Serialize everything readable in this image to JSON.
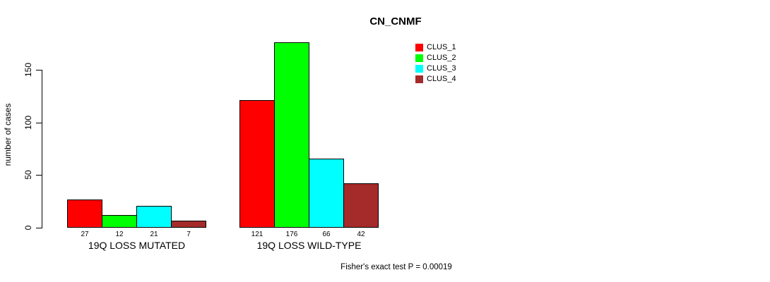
{
  "title": "CN_CNMF",
  "ylabel": "number of cases",
  "footnote": "Fisher's exact test P = 0.00019",
  "legend": [
    {
      "label": "CLUS_1",
      "color": "#FF0000"
    },
    {
      "label": "CLUS_2",
      "color": "#00FF00"
    },
    {
      "label": "CLUS_3",
      "color": "#00FFFF"
    },
    {
      "label": "CLUS_4",
      "color": "#A52A2A"
    }
  ],
  "chart_data": {
    "type": "bar",
    "title": "CN_CNMF",
    "ylabel": "number of cases",
    "xlabel": "",
    "categories": [
      "19Q LOSS MUTATED",
      "19Q LOSS WILD-TYPE"
    ],
    "series": [
      {
        "name": "CLUS_1",
        "color": "#FF0000",
        "values": [
          27,
          121
        ]
      },
      {
        "name": "CLUS_2",
        "color": "#00FF00",
        "values": [
          12,
          176
        ]
      },
      {
        "name": "CLUS_3",
        "color": "#00FFFF",
        "values": [
          21,
          66
        ]
      },
      {
        "name": "CLUS_4",
        "color": "#A52A2A",
        "values": [
          7,
          42
        ]
      }
    ],
    "yticks": [
      0,
      50,
      100,
      150
    ],
    "ylim": [
      0,
      176
    ],
    "grid": false,
    "legend_position": "top-right",
    "bar_value_labels": true,
    "annotation": "Fisher's exact test P = 0.00019"
  }
}
